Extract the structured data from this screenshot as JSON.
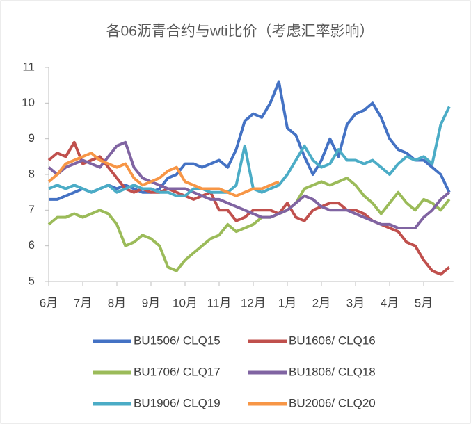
{
  "chart_data": {
    "type": "line",
    "title": "各06沥青合约与wti比价（考虑汇率影响）",
    "categories": [
      "6月",
      null,
      null,
      null,
      "7月",
      null,
      null,
      null,
      "8月",
      null,
      null,
      null,
      "9月",
      null,
      null,
      null,
      "10月",
      null,
      null,
      null,
      "11月",
      null,
      null,
      null,
      "12月",
      null,
      null,
      null,
      "1月",
      null,
      null,
      null,
      "2月",
      null,
      null,
      null,
      "3月",
      null,
      null,
      null,
      "4月",
      null,
      null,
      null,
      "5月",
      null,
      null,
      null
    ],
    "ylim": [
      5,
      11
    ],
    "yticks": [
      5,
      6,
      7,
      8,
      9,
      10,
      11
    ],
    "grid": false,
    "legend": "bottom",
    "series": [
      {
        "name": "BU1506/ CLQ15",
        "color": "#4472c4",
        "values": [
          7.3,
          7.3,
          7.4,
          7.5,
          7.6,
          7.5,
          7.6,
          7.7,
          7.6,
          7.7,
          7.6,
          7.5,
          7.5,
          7.6,
          7.9,
          8.0,
          8.3,
          8.3,
          8.2,
          8.3,
          8.4,
          8.2,
          8.7,
          9.5,
          9.7,
          9.6,
          10.0,
          10.6,
          9.3,
          9.1,
          8.5,
          8.0,
          8.4,
          9.0,
          8.5,
          9.4,
          9.7,
          9.8,
          10.0,
          9.6,
          9.0,
          8.7,
          8.6,
          8.4,
          8.4,
          8.2,
          8.0,
          7.5
        ]
      },
      {
        "name": "BU1606/ CLQ16",
        "color": "#c0504d",
        "values": [
          8.4,
          8.6,
          8.5,
          8.9,
          8.3,
          8.4,
          8.5,
          8.2,
          7.9,
          7.6,
          7.5,
          7.6,
          7.5,
          7.5,
          7.6,
          7.5,
          7.4,
          7.3,
          7.4,
          7.5,
          7.0,
          7.0,
          6.7,
          6.8,
          7.0,
          7.0,
          7.0,
          6.9,
          7.2,
          6.8,
          6.7,
          7.0,
          7.1,
          7.2,
          7.2,
          7.0,
          7.0,
          6.9,
          6.7,
          6.6,
          6.5,
          6.4,
          6.1,
          6.0,
          5.6,
          5.3,
          5.2,
          5.4
        ]
      },
      {
        "name": "BU1706/ CLQ17",
        "color": "#9bbb59",
        "values": [
          6.6,
          6.8,
          6.8,
          6.9,
          6.8,
          6.9,
          7.0,
          6.9,
          6.6,
          6.0,
          6.1,
          6.3,
          6.2,
          6.0,
          5.4,
          5.3,
          5.6,
          5.8,
          6.0,
          6.2,
          6.3,
          6.6,
          6.4,
          6.5,
          6.6,
          6.8,
          6.8,
          6.9,
          7.0,
          7.2,
          7.6,
          7.7,
          7.8,
          7.7,
          7.8,
          7.9,
          7.7,
          7.4,
          7.2,
          6.9,
          7.2,
          7.5,
          7.2,
          7.0,
          7.3,
          7.2,
          7.0,
          7.3
        ]
      },
      {
        "name": "BU1806/ CLQ18",
        "color": "#8064a2",
        "values": [
          8.2,
          8.0,
          8.2,
          8.3,
          8.4,
          8.3,
          8.2,
          8.5,
          8.8,
          8.9,
          8.2,
          7.9,
          7.8,
          7.7,
          7.6,
          7.6,
          7.6,
          7.5,
          7.4,
          7.3,
          7.3,
          7.2,
          7.1,
          7.0,
          6.9,
          6.8,
          6.8,
          6.9,
          7.0,
          7.2,
          7.4,
          7.3,
          7.1,
          7.0,
          7.0,
          7.0,
          6.9,
          6.8,
          6.7,
          6.6,
          6.6,
          6.5,
          6.5,
          6.5,
          6.8,
          7.0,
          7.3,
          7.5
        ]
      },
      {
        "name": "BU1906/ CLQ19",
        "color": "#4bacc6",
        "values": [
          7.6,
          7.7,
          7.6,
          7.7,
          7.6,
          7.5,
          7.6,
          7.7,
          7.5,
          7.6,
          7.7,
          7.6,
          7.6,
          7.5,
          7.5,
          7.4,
          7.4,
          7.6,
          7.6,
          7.5,
          7.5,
          7.5,
          7.7,
          8.8,
          7.6,
          7.5,
          7.6,
          7.7,
          8.0,
          8.4,
          8.8,
          8.4,
          8.2,
          8.3,
          8.7,
          8.4,
          8.4,
          8.3,
          8.4,
          8.2,
          8.0,
          8.3,
          8.5,
          8.4,
          8.5,
          8.3,
          9.4,
          9.9
        ]
      },
      {
        "name": "BU2006/ CLQ20",
        "color": "#f79646",
        "values": [
          7.8,
          8.0,
          8.3,
          8.4,
          8.5,
          8.6,
          8.4,
          8.3,
          8.2,
          8.3,
          7.9,
          7.7,
          7.8,
          7.9,
          8.1,
          8.2,
          7.8,
          7.7,
          7.6,
          7.6,
          7.6,
          7.5,
          7.4,
          7.5,
          7.6,
          7.6,
          7.7,
          7.8,
          null,
          null,
          null,
          null,
          null,
          null,
          null,
          null,
          null,
          null,
          null,
          null,
          null,
          null,
          null,
          null,
          null,
          null,
          null,
          null
        ]
      }
    ]
  }
}
